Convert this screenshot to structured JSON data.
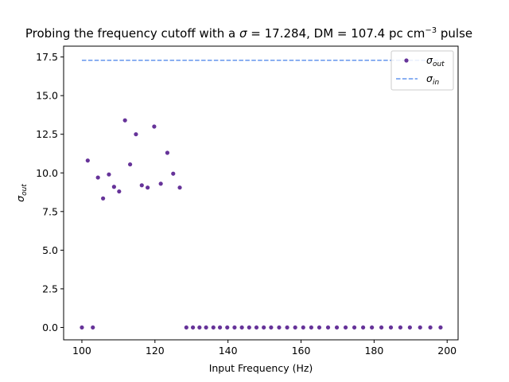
{
  "chart_data": {
    "type": "scatter",
    "title_prefix": "Probing the frequency cutoff with a ",
    "title_sigma": "σ",
    "title_mid": " = 17.284, DM = 107.4 pc cm",
    "title_exp": "−3",
    "title_suffix": " pulse",
    "xlabel": "Input Frequency (Hz)",
    "ylabel_base": "σ",
    "ylabel_sub": "out",
    "xlim": [
      95,
      203
    ],
    "ylim": [
      -0.8,
      18.2
    ],
    "xticks": [
      100,
      120,
      140,
      160,
      180,
      200
    ],
    "yticks": [
      0.0,
      2.5,
      5.0,
      7.5,
      10.0,
      12.5,
      15.0,
      17.5
    ],
    "ytick_labels": [
      "0.0",
      "2.5",
      "5.0",
      "7.5",
      "10.0",
      "12.5",
      "15.0",
      "17.5"
    ],
    "xtick_labels": [
      "100",
      "120",
      "140",
      "160",
      "180",
      "200"
    ],
    "legend_placement": "top-right",
    "colors": {
      "sigma_out": "#663399",
      "sigma_in": "#6495ed"
    },
    "series": [
      {
        "name_base": "σ",
        "name_sub": "out",
        "kind": "points",
        "x": [
          100.0,
          101.6,
          103.0,
          104.4,
          105.8,
          107.4,
          108.8,
          110.2,
          111.8,
          113.2,
          114.8,
          116.4,
          118.0,
          119.8,
          121.6,
          123.4,
          125.0,
          126.8,
          128.6,
          130.4,
          132.2,
          134.0,
          136.0,
          137.8,
          139.8,
          141.8,
          143.8,
          145.8,
          147.8,
          149.8,
          151.8,
          154.0,
          156.2,
          158.4,
          160.6,
          162.8,
          165.0,
          167.4,
          169.8,
          172.2,
          174.6,
          177.0,
          179.4,
          182.0,
          184.6,
          187.2,
          189.8,
          192.6,
          195.4,
          198.2
        ],
        "y": [
          0.0,
          10.8,
          0.0,
          9.7,
          8.35,
          9.9,
          9.1,
          8.8,
          13.4,
          10.55,
          12.5,
          9.2,
          9.05,
          13.0,
          9.3,
          11.3,
          9.95,
          9.05,
          0,
          0,
          0,
          0,
          0,
          0,
          0,
          0,
          0,
          0,
          0,
          0,
          0,
          0,
          0,
          0,
          0,
          0,
          0,
          0,
          0,
          0,
          0,
          0,
          0,
          0,
          0,
          0,
          0,
          0,
          0,
          0
        ]
      },
      {
        "name_base": "σ",
        "name_sub": "in",
        "kind": "dashed-line",
        "x": [
          100.0,
          198.2
        ],
        "y": [
          17.284,
          17.284
        ]
      }
    ]
  }
}
